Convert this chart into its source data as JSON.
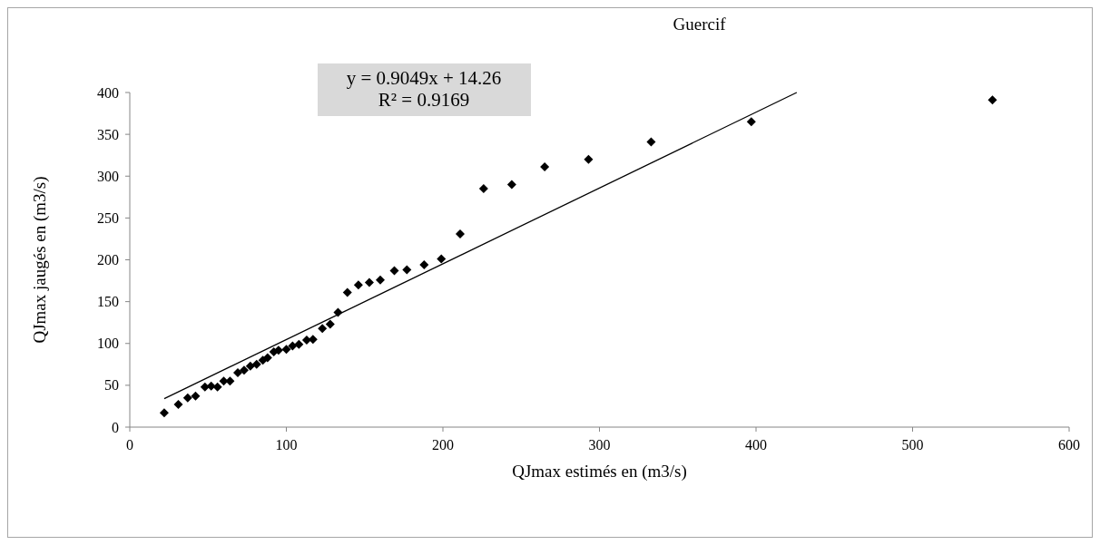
{
  "chart_data": {
    "type": "scatter",
    "title": "Guercif",
    "xlabel": "QJmax estimés en (m3/s)",
    "ylabel": "QJmax jaugés en (m3/s)",
    "annotations": [
      "y = 0.9049x + 14.26",
      "R² = 0.9169"
    ],
    "xlim": [
      0,
      600
    ],
    "xticks": [
      0,
      100,
      200,
      300,
      400,
      500,
      600
    ],
    "ylim": [
      0,
      400
    ],
    "yticks": [
      0,
      50,
      100,
      150,
      200,
      250,
      300,
      350,
      400
    ],
    "grid": false,
    "series": [
      {
        "color": "#000000",
        "marker": "diamond",
        "x": [
          22,
          31,
          37,
          42,
          48,
          52,
          56,
          60,
          64,
          69,
          73,
          77,
          81,
          85,
          88,
          92,
          95,
          100,
          104,
          108,
          113,
          117,
          123,
          128,
          133,
          139,
          146,
          153,
          160,
          169,
          177,
          188,
          199,
          211,
          226,
          244,
          265,
          293,
          333,
          397,
          551
        ],
        "values": [
          17,
          27,
          35,
          37,
          48,
          49,
          48,
          55,
          55,
          65,
          68,
          73,
          75,
          80,
          83,
          90,
          92,
          93,
          97,
          99,
          104,
          105,
          118,
          123,
          137,
          161,
          170,
          173,
          176,
          187,
          188,
          194,
          201,
          231,
          285,
          290,
          311,
          320,
          341,
          365,
          391
        ]
      },
      {
        "type": "line",
        "color": "#000000",
        "line_style": "solid",
        "x": [
          22,
          426
        ],
        "values": [
          34,
          400
        ]
      }
    ]
  }
}
